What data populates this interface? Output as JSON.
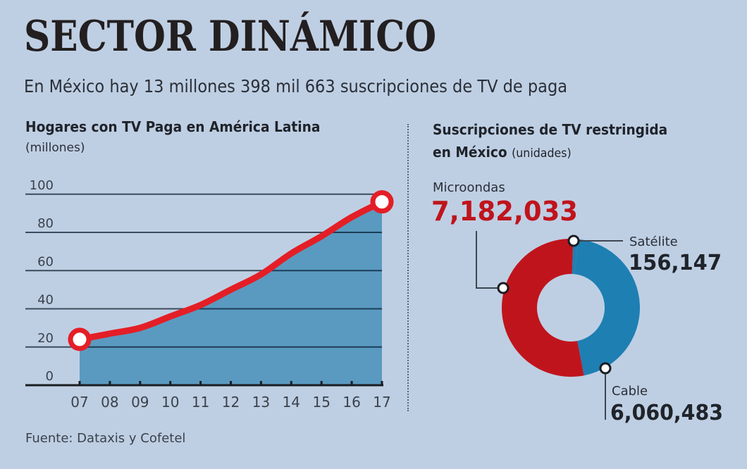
{
  "header": {
    "title": "SECTOR DINÁMICO",
    "subtitle": "En México hay 13 millones 398 mil 663 suscripciones de TV de paga"
  },
  "left_panel": {
    "title": "Hogares con TV Paga en América Latina",
    "unit": "(millones)"
  },
  "right_panel": {
    "title": "Suscripciones de TV restringida",
    "title_line2": "en México",
    "unit": "(unidades)",
    "segments": [
      {
        "label": "Microondas",
        "value": "7,182,033"
      },
      {
        "label": "Satélite",
        "value": "156,147"
      },
      {
        "label": "Cable",
        "value": "6,060,483"
      }
    ]
  },
  "footer": {
    "source": "Fuente: Dataxis y Cofetel"
  },
  "colors": {
    "background": "#bfcfe3",
    "area_fill": "#5a9ac0",
    "line": "#e41e26",
    "microondas": "#c0141c",
    "cable": "#1e7fb3",
    "highlight_text": "#c0141c",
    "gridline": "#3d4b5c"
  },
  "chart_data": [
    {
      "type": "area",
      "title": "Hogares con TV Paga en América Latina",
      "subtitle": "(millones)",
      "xlabel": "",
      "ylabel": "millones",
      "categories": [
        "07",
        "08",
        "09",
        "10",
        "11",
        "12",
        "13",
        "14",
        "15",
        "16",
        "17"
      ],
      "values": [
        24,
        27,
        30,
        36,
        42,
        50,
        58,
        69,
        78,
        88,
        96
      ],
      "yticks": [
        0,
        20,
        40,
        60,
        80,
        100
      ],
      "ylim": [
        0,
        100
      ],
      "grid": true,
      "highlighted_points": [
        "07",
        "17"
      ]
    },
    {
      "type": "pie",
      "style": "donut",
      "title": "Suscripciones de TV restringida en México",
      "subtitle": "(unidades)",
      "categories": [
        "Microondas",
        "Satélite",
        "Cable"
      ],
      "values": [
        7182033,
        156147,
        6060483
      ],
      "total_text": "13 millones 398 mil 663"
    }
  ]
}
